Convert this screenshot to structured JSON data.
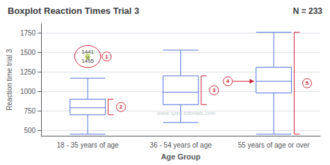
{
  "chart_data": {
    "type": "boxplot",
    "title": "Boxplot Reaction Times Trial 3",
    "subtitle": "N = 233",
    "xlabel": "Age Group",
    "ylabel": "Reaction time trial 3",
    "categories": [
      "18 - 35 years of age",
      "36 - 54 years of age",
      "55 years of age or over"
    ],
    "boxes": [
      {
        "whislo": 450,
        "q1": 700,
        "median": 790,
        "q3": 900,
        "whishi": 1170,
        "fliers": [
          1441,
          1455
        ]
      },
      {
        "whislo": 600,
        "q1": 830,
        "median": 990,
        "q3": 1200,
        "whishi": 1530
      },
      {
        "whislo": 450,
        "q1": 980,
        "median": 1130,
        "q3": 1310,
        "whishi": 1760
      }
    ],
    "ylim": [
      430,
      1870
    ],
    "yticks": [
      500,
      750,
      1000,
      1250,
      1500,
      1750
    ],
    "grid": true,
    "annotations": [
      {
        "text": "1441"
      },
      {
        "text": "o"
      },
      {
        "text": "1455"
      },
      {
        "text": "1",
        "color": "#cc2233"
      },
      {
        "text": "2",
        "color": "#cc2233"
      },
      {
        "text": "3",
        "color": "#cc2233"
      },
      {
        "text": "4",
        "color": "#cc2233"
      },
      {
        "text": "5",
        "color": "#cc2233"
      },
      {
        "text": "www.spss-tutorials.com",
        "color": "#bbcccc"
      }
    ]
  }
}
